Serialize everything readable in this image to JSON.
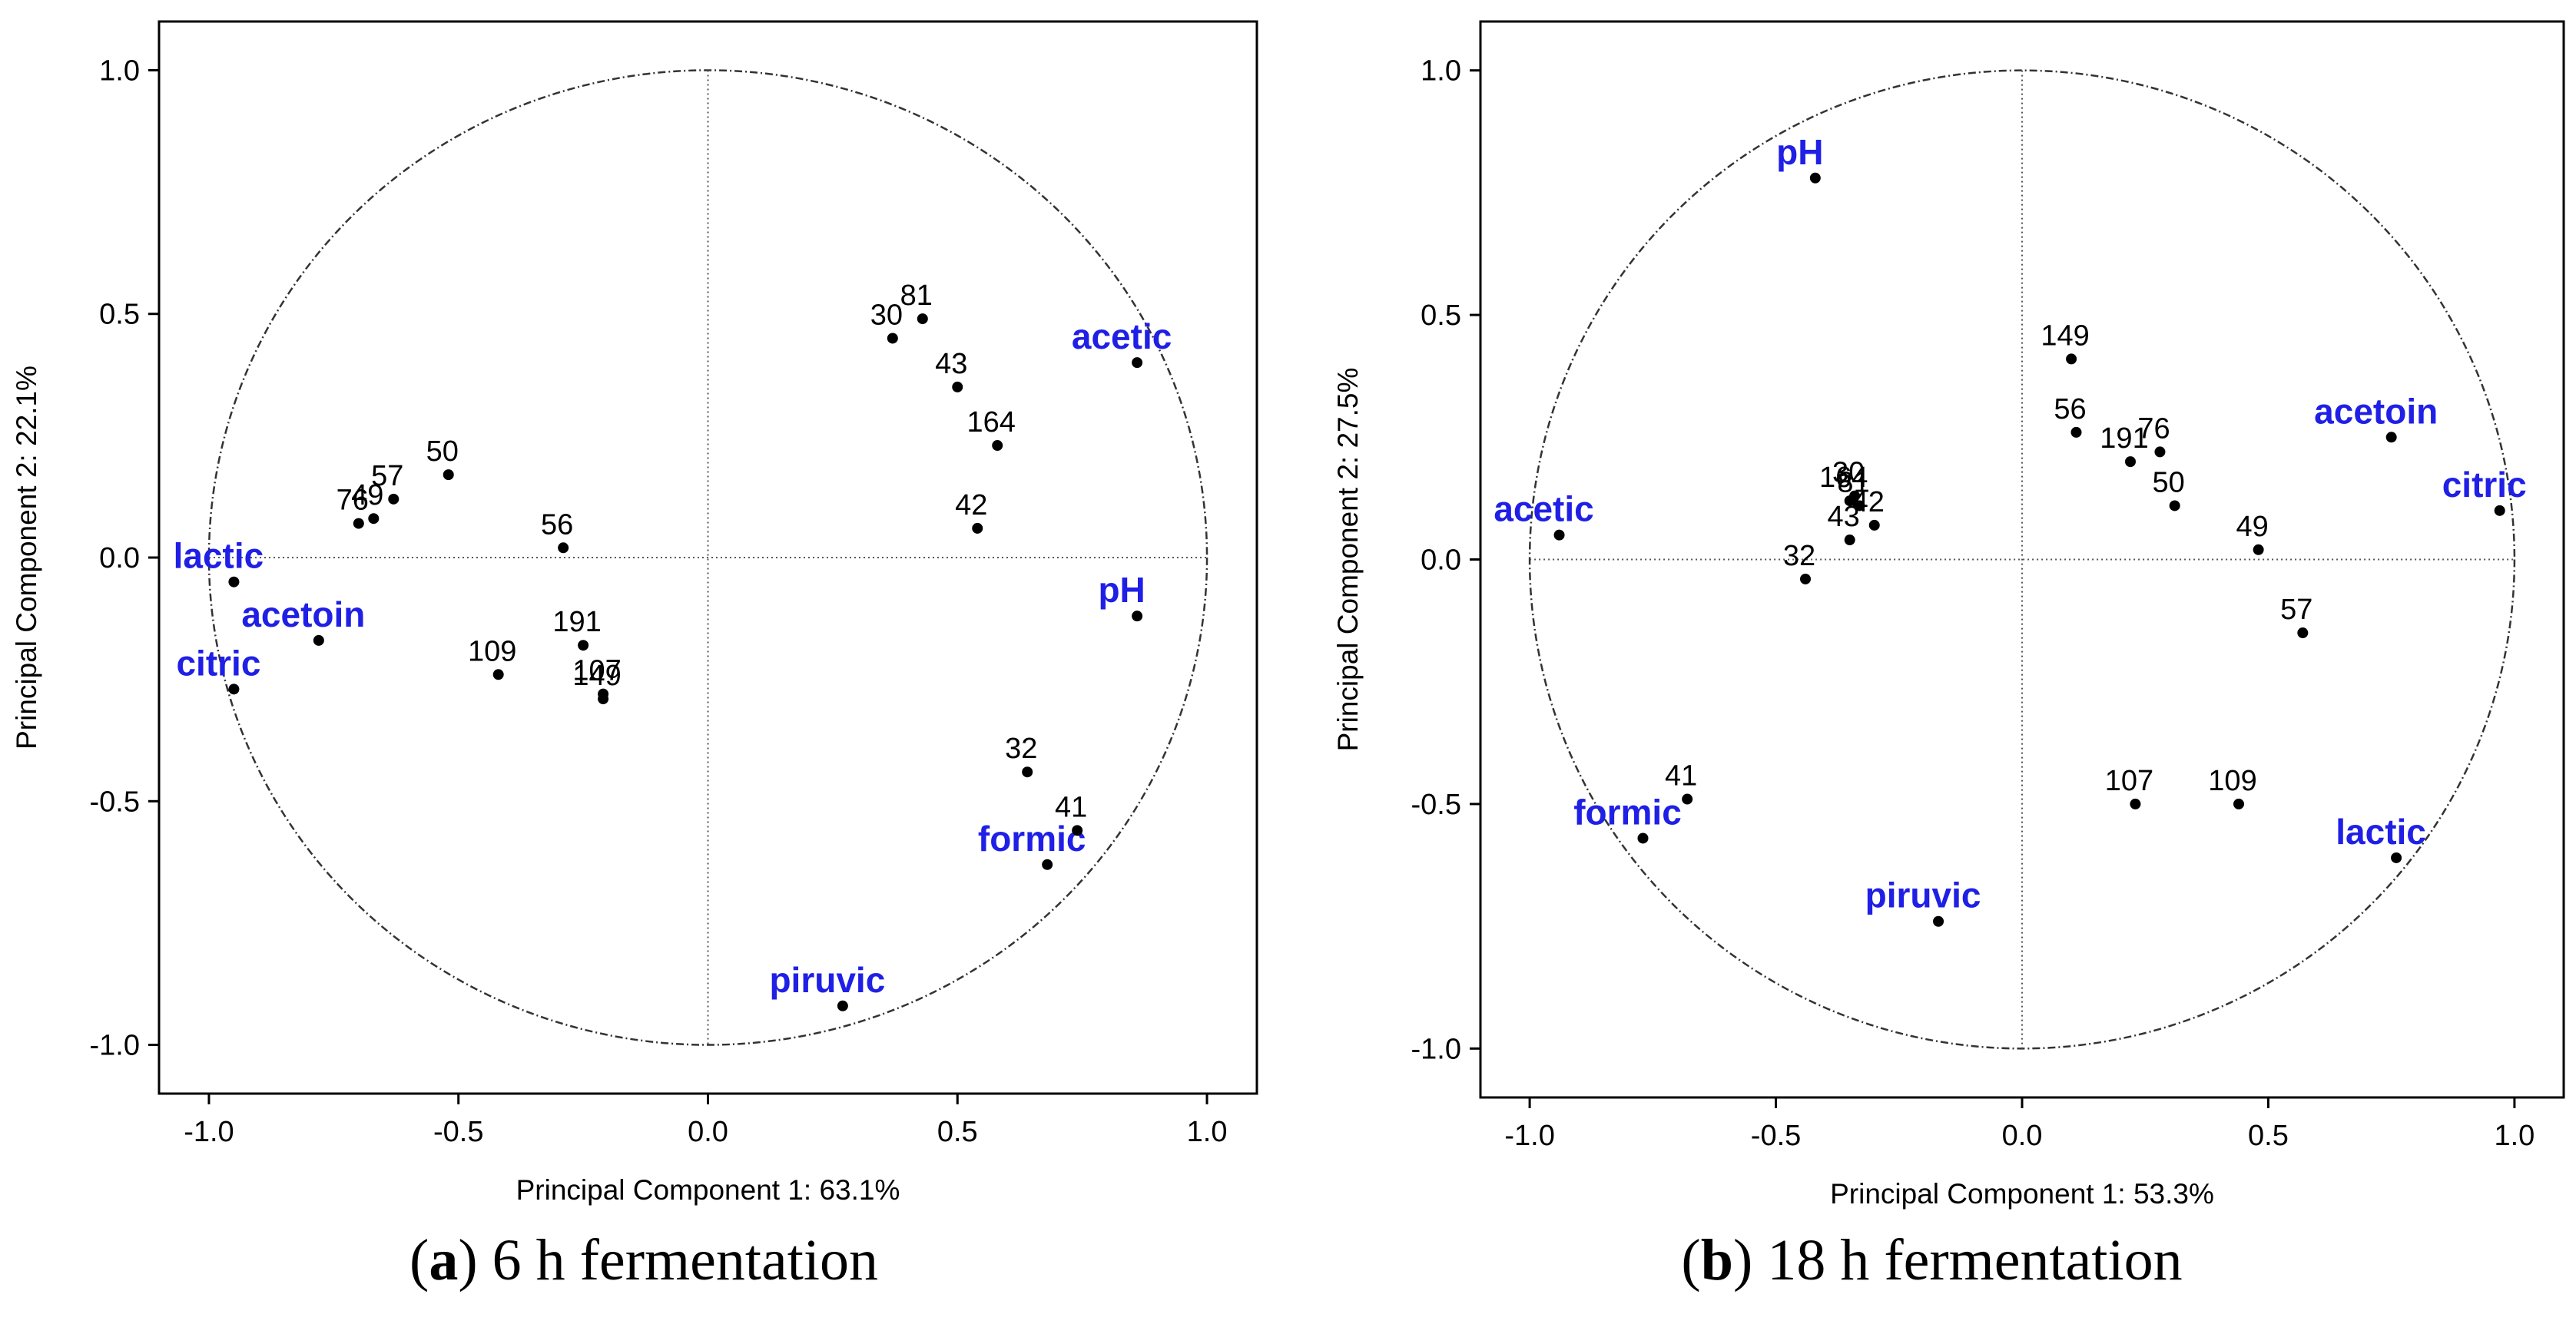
{
  "chart_data": [
    {
      "type": "scatter",
      "title": "",
      "xlabel": "Principal Component 1: 63.1%",
      "ylabel": "Principal Component 2: 22.1%",
      "xlim": [
        -1.1,
        1.1
      ],
      "ylim": [
        -1.1,
        1.1
      ],
      "xticks": [
        -1.0,
        -0.5,
        0.0,
        0.5,
        1.0
      ],
      "yticks": [
        -1.0,
        -0.5,
        0.0,
        0.5,
        1.0
      ],
      "xtick_labels": [
        "-1.0",
        "-0.5",
        "0.0",
        "0.5",
        "1.0"
      ],
      "ytick_labels": [
        "-1.0",
        "-0.5",
        "0.0",
        "0.5",
        "1.0"
      ],
      "unit_circle": true,
      "caption": {
        "letter": "a",
        "text": "6 h fermentation"
      },
      "variables": [
        {
          "label": "lactic",
          "x": -0.95,
          "y": -0.05
        },
        {
          "label": "acetoin",
          "x": -0.78,
          "y": -0.17
        },
        {
          "label": "citric",
          "x": -0.95,
          "y": -0.27
        },
        {
          "label": "acetic",
          "x": 0.86,
          "y": 0.4
        },
        {
          "label": "pH",
          "x": 0.86,
          "y": -0.12
        },
        {
          "label": "formic",
          "x": 0.68,
          "y": -0.63
        },
        {
          "label": "piruvic",
          "x": 0.27,
          "y": -0.92
        }
      ],
      "samples": [
        {
          "label": "81",
          "x": 0.43,
          "y": 0.49
        },
        {
          "label": "30",
          "x": 0.37,
          "y": 0.45
        },
        {
          "label": "43",
          "x": 0.5,
          "y": 0.35
        },
        {
          "label": "164",
          "x": 0.58,
          "y": 0.23
        },
        {
          "label": "42",
          "x": 0.54,
          "y": 0.06
        },
        {
          "label": "50",
          "x": -0.52,
          "y": 0.17
        },
        {
          "label": "57",
          "x": -0.63,
          "y": 0.12
        },
        {
          "label": "49",
          "x": -0.67,
          "y": 0.08
        },
        {
          "label": "76",
          "x": -0.7,
          "y": 0.07
        },
        {
          "label": "56",
          "x": -0.29,
          "y": 0.02
        },
        {
          "label": "109",
          "x": -0.42,
          "y": -0.24
        },
        {
          "label": "191",
          "x": -0.25,
          "y": -0.18
        },
        {
          "label": "107",
          "x": -0.21,
          "y": -0.28
        },
        {
          "label": "149",
          "x": -0.21,
          "y": -0.29
        },
        {
          "label": "32",
          "x": 0.64,
          "y": -0.44
        },
        {
          "label": "41",
          "x": 0.74,
          "y": -0.56
        }
      ]
    },
    {
      "type": "scatter",
      "title": "",
      "xlabel": "Principal Component 1: 53.3%",
      "ylabel": "Principal Component 2: 27.5%",
      "xlim": [
        -1.1,
        1.1
      ],
      "ylim": [
        -1.1,
        1.1
      ],
      "xticks": [
        -1.0,
        -0.5,
        0.0,
        0.5,
        1.0
      ],
      "yticks": [
        -1.0,
        -0.5,
        0.0,
        0.5,
        1.0
      ],
      "xtick_labels": [
        "-1.0",
        "-0.5",
        "0.0",
        "0.5",
        "1.0"
      ],
      "ytick_labels": [
        "-1.0",
        "-0.5",
        "0.0",
        "0.5",
        "1.0"
      ],
      "unit_circle": true,
      "caption": {
        "letter": "b",
        "text": "18 h fermentation"
      },
      "variables": [
        {
          "label": "pH",
          "x": -0.42,
          "y": 0.78
        },
        {
          "label": "acetic",
          "x": -0.94,
          "y": 0.05
        },
        {
          "label": "acetoin",
          "x": 0.75,
          "y": 0.25
        },
        {
          "label": "citric",
          "x": 0.97,
          "y": 0.1
        },
        {
          "label": "formic",
          "x": -0.77,
          "y": -0.57
        },
        {
          "label": "piruvic",
          "x": -0.17,
          "y": -0.74
        },
        {
          "label": "lactic",
          "x": 0.76,
          "y": -0.61
        }
      ],
      "samples": [
        {
          "label": "149",
          "x": 0.1,
          "y": 0.41
        },
        {
          "label": "56",
          "x": 0.11,
          "y": 0.26
        },
        {
          "label": "191",
          "x": 0.22,
          "y": 0.2
        },
        {
          "label": "76",
          "x": 0.28,
          "y": 0.22
        },
        {
          "label": "50",
          "x": 0.31,
          "y": 0.11
        },
        {
          "label": "49",
          "x": 0.48,
          "y": 0.02
        },
        {
          "label": "57",
          "x": 0.57,
          "y": -0.15
        },
        {
          "label": "30",
          "x": -0.34,
          "y": 0.13
        },
        {
          "label": "164",
          "x": -0.35,
          "y": 0.12
        },
        {
          "label": "81",
          "x": -0.33,
          "y": 0.11
        },
        {
          "label": "42",
          "x": -0.3,
          "y": 0.07
        },
        {
          "label": "43",
          "x": -0.35,
          "y": 0.04
        },
        {
          "label": "32",
          "x": -0.44,
          "y": -0.04
        },
        {
          "label": "41",
          "x": -0.68,
          "y": -0.49
        },
        {
          "label": "107",
          "x": 0.23,
          "y": -0.5
        },
        {
          "label": "109",
          "x": 0.44,
          "y": -0.5
        }
      ]
    }
  ]
}
